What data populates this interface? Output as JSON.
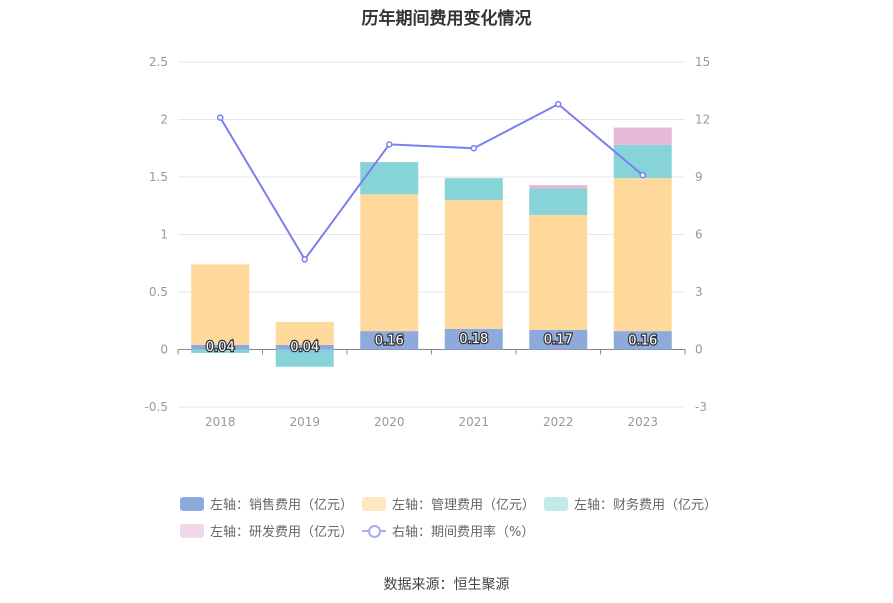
{
  "chart_data": {
    "type": "bar",
    "title": "历年期间费用变化情况",
    "categories": [
      "2018",
      "2019",
      "2020",
      "2021",
      "2022",
      "2023"
    ],
    "y_left": {
      "ylim": [
        -0.5,
        2.5
      ],
      "ticks": [
        "-0.5",
        "0",
        "0.5",
        "1",
        "1.5",
        "2",
        "2.5"
      ],
      "tick_values": [
        -0.5,
        0,
        0.5,
        1,
        1.5,
        2,
        2.5
      ]
    },
    "y_right": {
      "ylim": [
        -3,
        15
      ],
      "ticks": [
        "-3",
        "0",
        "3",
        "6",
        "9",
        "12",
        "15"
      ],
      "tick_values": [
        -3,
        0,
        3,
        6,
        9,
        12,
        15
      ]
    },
    "series": [
      {
        "name": "左轴：销售费用（亿元）",
        "axis": "left",
        "stack": true,
        "color": "#8eaadc",
        "values": [
          0.04,
          0.04,
          0.16,
          0.18,
          0.17,
          0.16
        ],
        "labels": [
          "0.04",
          "0.04",
          "0.16",
          "0.18",
          "0.17",
          "0.16"
        ]
      },
      {
        "name": "左轴：管理费用（亿元）",
        "axis": "left",
        "stack": true,
        "color": "#ffd99b",
        "values": [
          0.7,
          0.2,
          1.19,
          1.12,
          1.0,
          1.33
        ]
      },
      {
        "name": "左轴：财务费用（亿元）",
        "axis": "left",
        "stack": true,
        "color": "#87d4d8",
        "values": [
          -0.03,
          -0.15,
          0.28,
          0.19,
          0.23,
          0.29
        ]
      },
      {
        "name": "左轴：研发费用（亿元）",
        "axis": "left",
        "stack": true,
        "color": "#e8b8d8",
        "values": [
          0,
          0,
          0,
          0,
          0.03,
          0.15
        ]
      },
      {
        "name": "右轴：期间费用率（%）",
        "axis": "right",
        "type": "line",
        "color": "#7b7ff0",
        "values": [
          12.1,
          4.7,
          10.7,
          10.5,
          12.8,
          9.1
        ]
      }
    ],
    "legend_position": "bottom"
  },
  "legend": {
    "items": [
      {
        "label": "左轴：销售费用（亿元）",
        "color": "#8eaadc",
        "kind": "box"
      },
      {
        "label": "左轴：管理费用（亿元）",
        "color": "#ffe7c2",
        "kind": "box"
      },
      {
        "label": "左轴：财务费用（亿元）",
        "color": "#c2eaea",
        "kind": "box"
      },
      {
        "label": "左轴：研发费用（亿元）",
        "color": "#f2d8ea",
        "kind": "box"
      },
      {
        "label": "右轴：期间费用率（%）",
        "color": "#a8acf0",
        "kind": "line"
      }
    ]
  },
  "footer": {
    "source": "数据来源：恒生聚源"
  }
}
